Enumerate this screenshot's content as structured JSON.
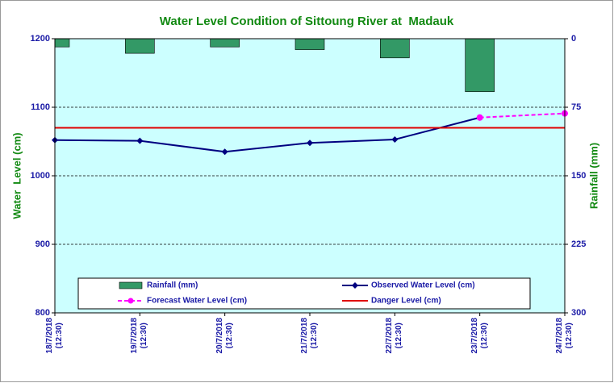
{
  "chart_data": {
    "type": "bar",
    "title": "Water Level Condition of Sittoung River at  Madauk",
    "ylabel": "Water  Level (cm)",
    "y2label": "Rainfall (mm)",
    "categories": [
      "18/7/2018\n(12:30)",
      "19/7/2018\n(12:30)",
      "20/7/2018\n(12:30)",
      "21/7/2018\n(12:30)",
      "22/7/2018\n(12:30)",
      "23/7/2018\n(12:30)",
      "24/7/2018\n(12:30)"
    ],
    "ylim": [
      800,
      1200
    ],
    "yticks": [
      800,
      900,
      1000,
      1100,
      1200
    ],
    "y2lim": [
      300,
      0
    ],
    "y2ticks": [
      0,
      75,
      150,
      225,
      300
    ],
    "grid": true,
    "series": [
      {
        "name": "Rainfall (mm)",
        "type": "bar",
        "axis": "y2",
        "color": "#339966",
        "values": [
          9,
          16,
          9,
          12,
          21,
          58,
          null
        ]
      },
      {
        "name": "Observed Water Level (cm)",
        "type": "line",
        "marker": "diamond",
        "color": "#000080",
        "values": [
          1052,
          1051,
          1035,
          1048,
          1053,
          1085,
          null
        ]
      },
      {
        "name": "Forecast Water Level (cm)",
        "type": "line",
        "marker": "circle",
        "dashed": true,
        "color": "#ff00ff",
        "values": [
          null,
          null,
          null,
          null,
          null,
          1085,
          1091
        ]
      },
      {
        "name": "Danger Level (cm)",
        "type": "line",
        "color": "#e00000",
        "values": [
          1070,
          1070,
          1070,
          1070,
          1070,
          1070,
          1070
        ]
      }
    ]
  }
}
